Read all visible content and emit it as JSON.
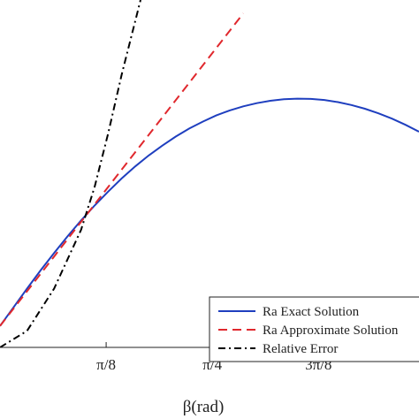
{
  "chart_data": {
    "type": "line",
    "xlabel": "β(rad)",
    "ylabel": "",
    "title": "",
    "xlim": [
      0,
      1.55
    ],
    "ylim": [
      0,
      1.3
    ],
    "x_ticks": [
      {
        "value": 0.3927,
        "label": "π/8"
      },
      {
        "value": 0.7854,
        "label": "π/4"
      },
      {
        "value": 1.1781,
        "label": "3π/8"
      }
    ],
    "grid": false,
    "legend_position": "bottom-right",
    "series": [
      {
        "name": "Ra Exact Solution",
        "color": "#1f3fbf",
        "style": "solid",
        "x": [
          0,
          0.05,
          0.1,
          0.15,
          0.2,
          0.25,
          0.3,
          0.35,
          0.4,
          0.45,
          0.5,
          0.55,
          0.6,
          0.65,
          0.7,
          0.75,
          0.8,
          0.85,
          0.9,
          0.95,
          1.0,
          1.05,
          1.1,
          1.15,
          1.2,
          1.25,
          1.3,
          1.35,
          1.4,
          1.45,
          1.5,
          1.55
        ],
        "y": [
          0.08,
          0.15,
          0.22,
          0.288,
          0.353,
          0.416,
          0.475,
          0.531,
          0.583,
          0.632,
          0.677,
          0.718,
          0.755,
          0.789,
          0.819,
          0.845,
          0.868,
          0.887,
          0.902,
          0.914,
          0.923,
          0.929,
          0.931,
          0.93,
          0.926,
          0.918,
          0.907,
          0.893,
          0.876,
          0.856,
          0.833,
          0.807
        ]
      },
      {
        "name": "Ra Approximate Solution",
        "color": "#e0282d",
        "style": "dashed",
        "x": [
          0,
          0.2,
          0.4,
          0.6,
          0.8,
          0.9
        ],
        "y": [
          0.08,
          0.34,
          0.6,
          0.86,
          1.12,
          1.25
        ]
      },
      {
        "name": "Relative Error",
        "color": "#000000",
        "style": "dashdot",
        "x": [
          0,
          0.1,
          0.2,
          0.3,
          0.35,
          0.4,
          0.45,
          0.5,
          0.52
        ],
        "y": [
          0.0,
          0.062,
          0.22,
          0.44,
          0.6,
          0.8,
          1.02,
          1.22,
          1.3
        ]
      }
    ]
  }
}
